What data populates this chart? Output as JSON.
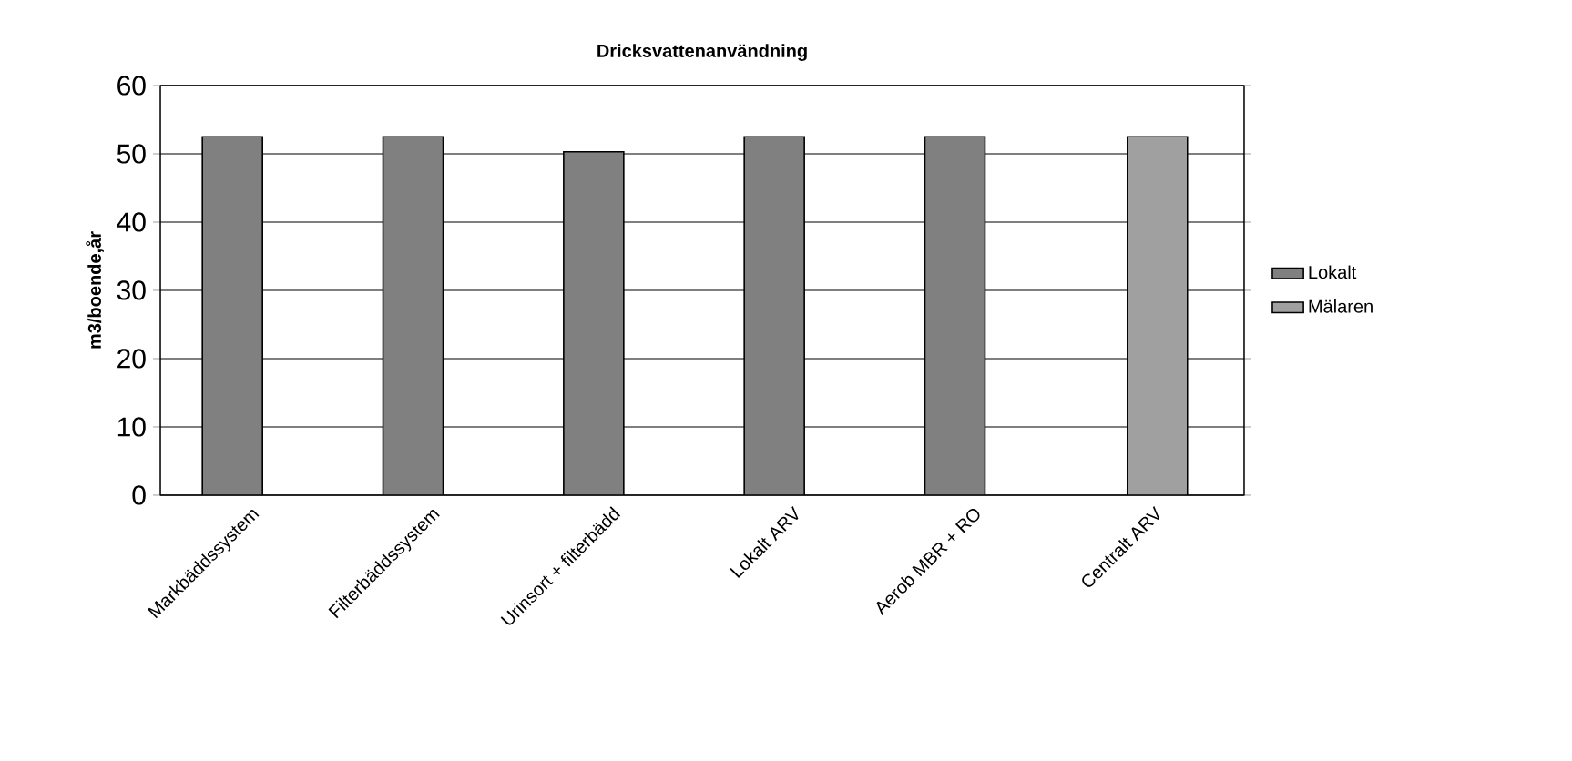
{
  "chart_data": {
    "type": "bar",
    "title": "Dricksvattenanvändning",
    "ylabel": "m3/boende,år",
    "categories": [
      "Markbäddssystem",
      "Filterbäddssystem",
      "Urinsort + filterbädd",
      "Lokalt ARV",
      "Aerob MBR + RO",
      "Centralt ARV"
    ],
    "series": [
      {
        "name": "Lokalt",
        "color": "#808080",
        "values": [
          52.5,
          52.5,
          50.3,
          52.5,
          52.5,
          null
        ]
      },
      {
        "name": "Mälaren",
        "color": "#a0a0a0",
        "values": [
          null,
          null,
          null,
          null,
          null,
          52.5
        ]
      }
    ],
    "ylim": [
      0,
      60
    ],
    "yticks": [
      0,
      10,
      20,
      30,
      40,
      50,
      60
    ],
    "grid": "y",
    "legend": "right"
  }
}
